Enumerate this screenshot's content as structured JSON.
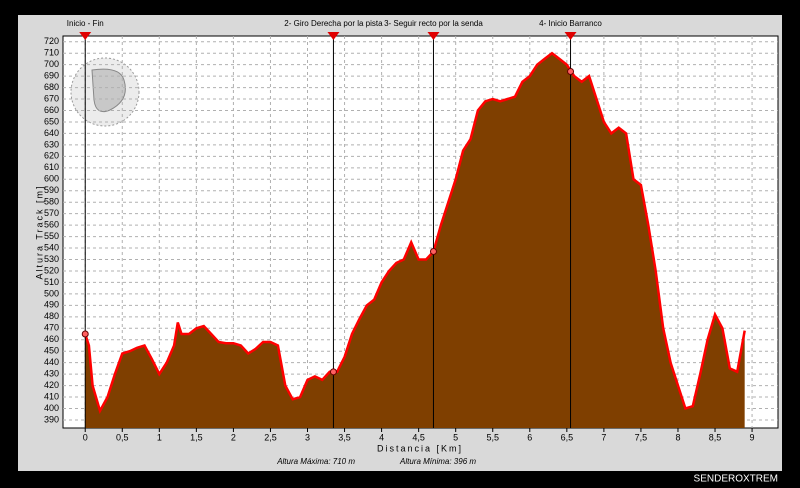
{
  "chart_data": {
    "type": "area",
    "x_label": "Distancia [Km]",
    "y_label": "Altura Track [m]",
    "x": [
      0,
      0.05,
      0.1,
      0.2,
      0.3,
      0.4,
      0.5,
      0.6,
      0.7,
      0.8,
      0.9,
      1.0,
      1.1,
      1.2,
      1.25,
      1.3,
      1.4,
      1.5,
      1.6,
      1.7,
      1.8,
      1.9,
      2.0,
      2.1,
      2.2,
      2.3,
      2.4,
      2.5,
      2.6,
      2.7,
      2.8,
      2.9,
      3.0,
      3.1,
      3.2,
      3.3,
      3.4,
      3.5,
      3.6,
      3.7,
      3.8,
      3.9,
      4.0,
      4.1,
      4.2,
      4.3,
      4.4,
      4.5,
      4.6,
      4.7,
      4.8,
      4.9,
      5.0,
      5.1,
      5.2,
      5.3,
      5.4,
      5.5,
      5.6,
      5.7,
      5.8,
      5.9,
      6.0,
      6.1,
      6.2,
      6.3,
      6.4,
      6.5,
      6.6,
      6.7,
      6.8,
      6.9,
      7.0,
      7.1,
      7.2,
      7.3,
      7.4,
      7.5,
      7.6,
      7.7,
      7.8,
      7.9,
      8.0,
      8.1,
      8.2,
      8.3,
      8.4,
      8.5,
      8.6,
      8.7,
      8.8,
      8.9
    ],
    "values": [
      465,
      455,
      420,
      398,
      410,
      430,
      448,
      450,
      453,
      455,
      443,
      430,
      440,
      455,
      475,
      465,
      465,
      470,
      472,
      465,
      458,
      457,
      457,
      455,
      448,
      452,
      458,
      458,
      455,
      420,
      408,
      410,
      425,
      428,
      425,
      432,
      432,
      445,
      465,
      478,
      490,
      495,
      510,
      520,
      527,
      530,
      545,
      530,
      530,
      537,
      560,
      580,
      600,
      625,
      635,
      660,
      668,
      670,
      668,
      670,
      672,
      685,
      690,
      700,
      705,
      710,
      705,
      700,
      690,
      685,
      690,
      670,
      650,
      640,
      645,
      640,
      600,
      595,
      560,
      520,
      470,
      440,
      420,
      400,
      402,
      430,
      460,
      482,
      470,
      435,
      432,
      468
    ],
    "color": "#7f3f00",
    "line_color": "#ff0000",
    "xlim": [
      -0.3,
      9.35
    ],
    "ylim": [
      383,
      725
    ],
    "xticks": [
      0,
      {
        "value": 0.5,
        "label": "0,5"
      },
      1,
      {
        "value": 1.5,
        "label": "1,5"
      },
      2,
      {
        "value": 2.5,
        "label": "2,5"
      },
      3,
      {
        "value": 3.5,
        "label": "3,5"
      },
      4,
      {
        "value": 4.5,
        "label": "4,5"
      },
      5,
      {
        "value": 5.5,
        "label": "5,5"
      },
      6,
      {
        "value": 6.5,
        "label": "6,5"
      },
      7,
      {
        "value": 7.5,
        "label": "7,5"
      },
      8,
      {
        "value": 8.5,
        "label": "8,5"
      },
      9
    ],
    "yticks": [
      390,
      400,
      410,
      420,
      430,
      440,
      450,
      460,
      470,
      480,
      490,
      500,
      510,
      520,
      530,
      540,
      550,
      560,
      570,
      580,
      590,
      600,
      610,
      620,
      630,
      640,
      650,
      660,
      670,
      680,
      690,
      700,
      710,
      720
    ],
    "grid": true,
    "waypoints": [
      {
        "label": "Inicio - Fin",
        "x": 0,
        "y": 465
      },
      {
        "label": "2- Giro Derecha por la pista",
        "x": 3.35,
        "y": 432
      },
      {
        "label": "3- Seguir recto por la senda",
        "x": 4.7,
        "y": 537
      },
      {
        "label": "4- Inicio Barranco",
        "x": 6.55,
        "y": 694
      }
    ],
    "max_text": "Altura Máxima: 710 m",
    "min_text": "Altura Mínima: 396 m",
    "watermark": "SENDEROXTREM"
  }
}
